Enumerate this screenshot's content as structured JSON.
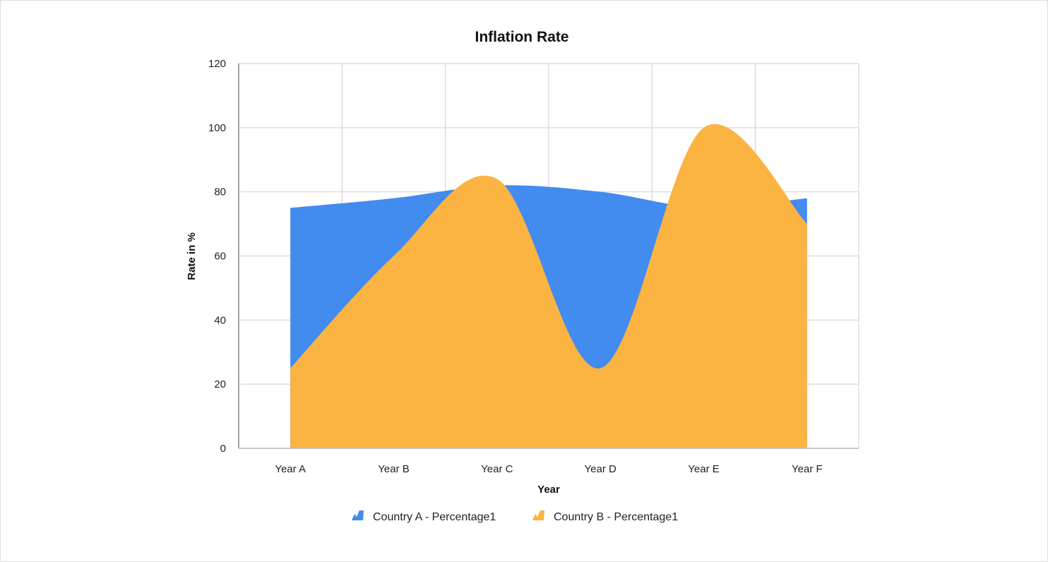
{
  "chart_data": {
    "type": "area",
    "title": "Inflation Rate",
    "xlabel": "Year",
    "ylabel": "Rate in %",
    "categories": [
      "Year A",
      "Year B",
      "Year C",
      "Year D",
      "Year E",
      "Year F"
    ],
    "ylim": [
      0,
      120
    ],
    "yticks": [
      0,
      20,
      40,
      60,
      80,
      100,
      120
    ],
    "grid": true,
    "legend_position": "bottom",
    "curve": "spline",
    "series": [
      {
        "name": "Country A - Percentage1",
        "color": "#428bef",
        "values": [
          75,
          78,
          82,
          80,
          75,
          78
        ]
      },
      {
        "name": "Country B - Percentage1",
        "color": "#fbb342",
        "values": [
          25,
          60,
          84,
          25,
          100,
          70
        ]
      }
    ]
  }
}
